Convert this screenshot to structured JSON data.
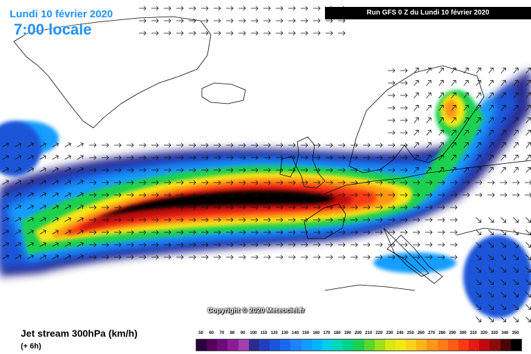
{
  "header": {
    "date": "Lundi 10 février 2020",
    "time": "7:00 locale",
    "run": "Run GFS 0 Z du Lundi 10 février 2020"
  },
  "copyright": "Copyright © 2020 Meteociel.fr",
  "legend": {
    "title": "Jet stream 300hPa (km/h)",
    "subtitle": "(+ 6h)",
    "ticks": [
      50,
      60,
      70,
      80,
      90,
      100,
      110,
      120,
      130,
      140,
      150,
      160,
      170,
      180,
      190,
      200,
      210,
      220,
      230,
      240,
      250,
      260,
      270,
      280,
      290,
      300,
      310,
      320,
      330,
      340,
      350
    ],
    "colors": [
      "#2a0040",
      "#55005a",
      "#6e0a7a",
      "#8a1c94",
      "#a53db0",
      "#2b2b8f",
      "#1f3fbf",
      "#1a55d8",
      "#1768ef",
      "#1e82ff",
      "#139dff",
      "#00b6ff",
      "#00cfe8",
      "#00d8b8",
      "#00d288",
      "#1ed050",
      "#5cd62a",
      "#9ee01a",
      "#d8ea12",
      "#f6e614",
      "#ffd21a",
      "#ffb418",
      "#ff9618",
      "#ff7a18",
      "#ff5a16",
      "#f83a14",
      "#e11c14",
      "#c00a10",
      "#8e0a0a",
      "#4a0606",
      "#000000"
    ]
  },
  "map": {
    "speed_levels_kmh": [
      50,
      100,
      150,
      200,
      230,
      260,
      290,
      320,
      350
    ],
    "level_colors": [
      "#2b2b8f",
      "#1a55d8",
      "#139dff",
      "#1ed050",
      "#f6e614",
      "#ff9618",
      "#f83a14",
      "#c00a10",
      "#000000"
    ]
  }
}
